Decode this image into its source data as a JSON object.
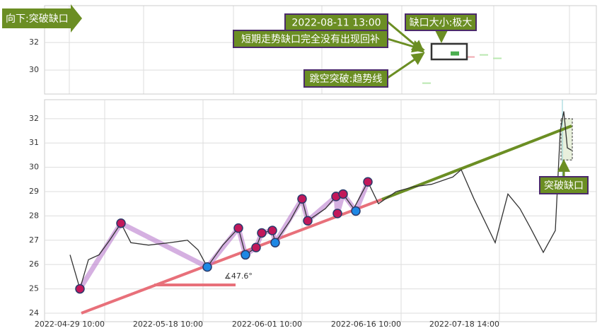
{
  "chart_data": [
    {
      "type": "candlestick",
      "title": "向下:突破缺口",
      "annotations": [
        "2022-08-11 13:00",
        "缺口大小:极大",
        "短期走势缺口完全没有出现回补",
        "跳空突破:趋势线"
      ],
      "x": [
        108,
        116,
        120.4,
        124.2,
        128
      ],
      "open": [
        29.05,
        31.05,
        30.95,
        31.05,
        30.8
      ],
      "close": [
        29.1,
        31.35,
        31.0,
        31.15,
        30.9
      ],
      "colors": [
        "#b9e8b0",
        "#4caf50",
        "#f0a8b0",
        "#b9e8b0",
        "#b9e8b0"
      ],
      "gap_box": {
        "x": [
          109.4,
          119.4
        ],
        "y": [
          30.77,
          31.9
        ]
      },
      "xlim": [
        0,
        156
      ],
      "ylim": [
        28.26,
        34.67
      ],
      "yticks": [
        30,
        32
      ],
      "grid": true
    },
    {
      "type": "line",
      "annotations": [
        "∡47.6°",
        "突破缺口"
      ],
      "x": [
        7.2,
        10,
        12.4,
        15.4,
        18.4,
        21.6,
        24.4,
        29.4,
        35.4,
        40.4,
        43.4,
        46,
        50.4,
        54.8,
        56.8,
        59.8,
        61.4,
        64.4,
        65.2,
        69.4,
        72.8,
        74.4,
        79.4,
        82.4,
        84.4,
        87.4,
        91.4,
        94.4,
        99.4,
        104.4,
        109.4,
        115.4,
        117.8,
        121.4,
        127.4,
        131,
        134.4,
        137.4,
        141,
        144.4,
        145.8,
        146.8,
        147.8,
        149
      ],
      "series": [
        {
          "color": "#333333",
          "values": [
            26.4,
            25.0,
            26.2,
            26.4,
            27.0,
            27.7,
            26.9,
            26.8,
            26.9,
            27.0,
            26.6,
            25.9,
            26.8,
            27.5,
            26.4,
            26.7,
            27.3,
            27.4,
            26.9,
            27.8,
            28.7,
            27.8,
            28.3,
            28.8,
            28.9,
            28.3,
            29.4,
            28.5,
            29.0,
            29.2,
            29.3,
            29.6,
            29.9,
            28.7,
            26.9,
            28.9,
            28.3,
            27.5,
            26.5,
            27.4,
            31.5,
            32.3,
            30.8,
            30.7
          ]
        }
      ],
      "pivots": {
        "x": [
          10,
          21.6,
          46,
          54.8,
          56.8,
          59.8,
          61.4,
          64.4,
          65.2,
          72.8,
          74.4,
          82.4,
          82.8,
          84.4,
          88,
          91.4
        ],
        "values": [
          25.0,
          27.7,
          25.9,
          27.5,
          26.4,
          26.7,
          27.3,
          27.4,
          26.9,
          28.7,
          27.8,
          28.8,
          28.1,
          28.9,
          28.2,
          29.4
        ],
        "colors": [
          "#c2185b",
          "#c2185b",
          "#1e88e5",
          "#c2185b",
          "#1e88e5",
          "#c2185b",
          "#c2185b",
          "#c2185b",
          "#1e88e5",
          "#c2185b",
          "#c2185b",
          "#c2185b",
          "#c2185b",
          "#c2185b",
          "#1e88e5",
          "#c2185b"
        ]
      },
      "trendlines": [
        {
          "color": "#e8707a",
          "x": [
            10.4,
            95.4
          ],
          "values": [
            24.0,
            28.68
          ]
        },
        {
          "color": "#6b8e23",
          "x": [
            95.4,
            149
          ],
          "values": [
            28.68,
            31.7
          ]
        }
      ],
      "gap_box": {
        "x": [
          146,
          149.2
        ],
        "y": [
          30.3,
          32.0
        ]
      },
      "xlim": [
        0,
        156
      ],
      "ylim": [
        23.65,
        32.78
      ],
      "yticks": [
        24,
        25,
        26,
        27,
        28,
        29,
        30,
        31,
        32
      ],
      "xticks": [
        {
          "value": 17,
          "label": "2022-04-29 10:00"
        },
        {
          "value": 44.8,
          "label": "2022-05-18 10:00"
        },
        {
          "value": 72.8,
          "label": "2022-06-01 10:00"
        },
        {
          "value": 100.8,
          "label": "2022-06-16 10:00"
        },
        {
          "value": 128.6,
          "label": "2022-07-18 14:00"
        }
      ],
      "grid": true
    }
  ]
}
